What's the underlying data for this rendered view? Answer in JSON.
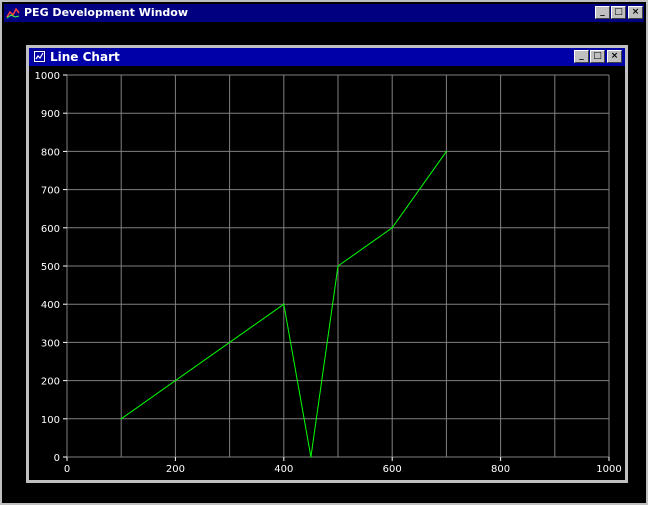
{
  "outer_window": {
    "title": "PEG Development Window",
    "buttons": {
      "minimize": "_",
      "maximize": "□",
      "close": "×"
    }
  },
  "inner_window": {
    "title": "Line Chart",
    "buttons": {
      "minimize": "_",
      "maximize": "□",
      "close": "×"
    }
  },
  "colors": {
    "titlebar": "#000080",
    "inner_titlebar": "#0000a8",
    "background": "#000000",
    "grid": "#808080",
    "line": "#00ff00",
    "tick_text": "#ffffff"
  },
  "chart_data": {
    "type": "line",
    "title": "",
    "xlabel": "",
    "ylabel": "",
    "xlim": [
      0,
      1000
    ],
    "ylim": [
      0,
      1000
    ],
    "x_ticks": [
      "0",
      "200",
      "400",
      "600",
      "800",
      "1000"
    ],
    "y_ticks": [
      "0",
      "100",
      "200",
      "300",
      "400",
      "500",
      "600",
      "700",
      "800",
      "900",
      "1000"
    ],
    "grid": true,
    "series": [
      {
        "x": [
          100,
          400,
          450,
          500,
          600,
          700
        ],
        "y": [
          100,
          400,
          0,
          500,
          600,
          800
        ]
      }
    ]
  }
}
